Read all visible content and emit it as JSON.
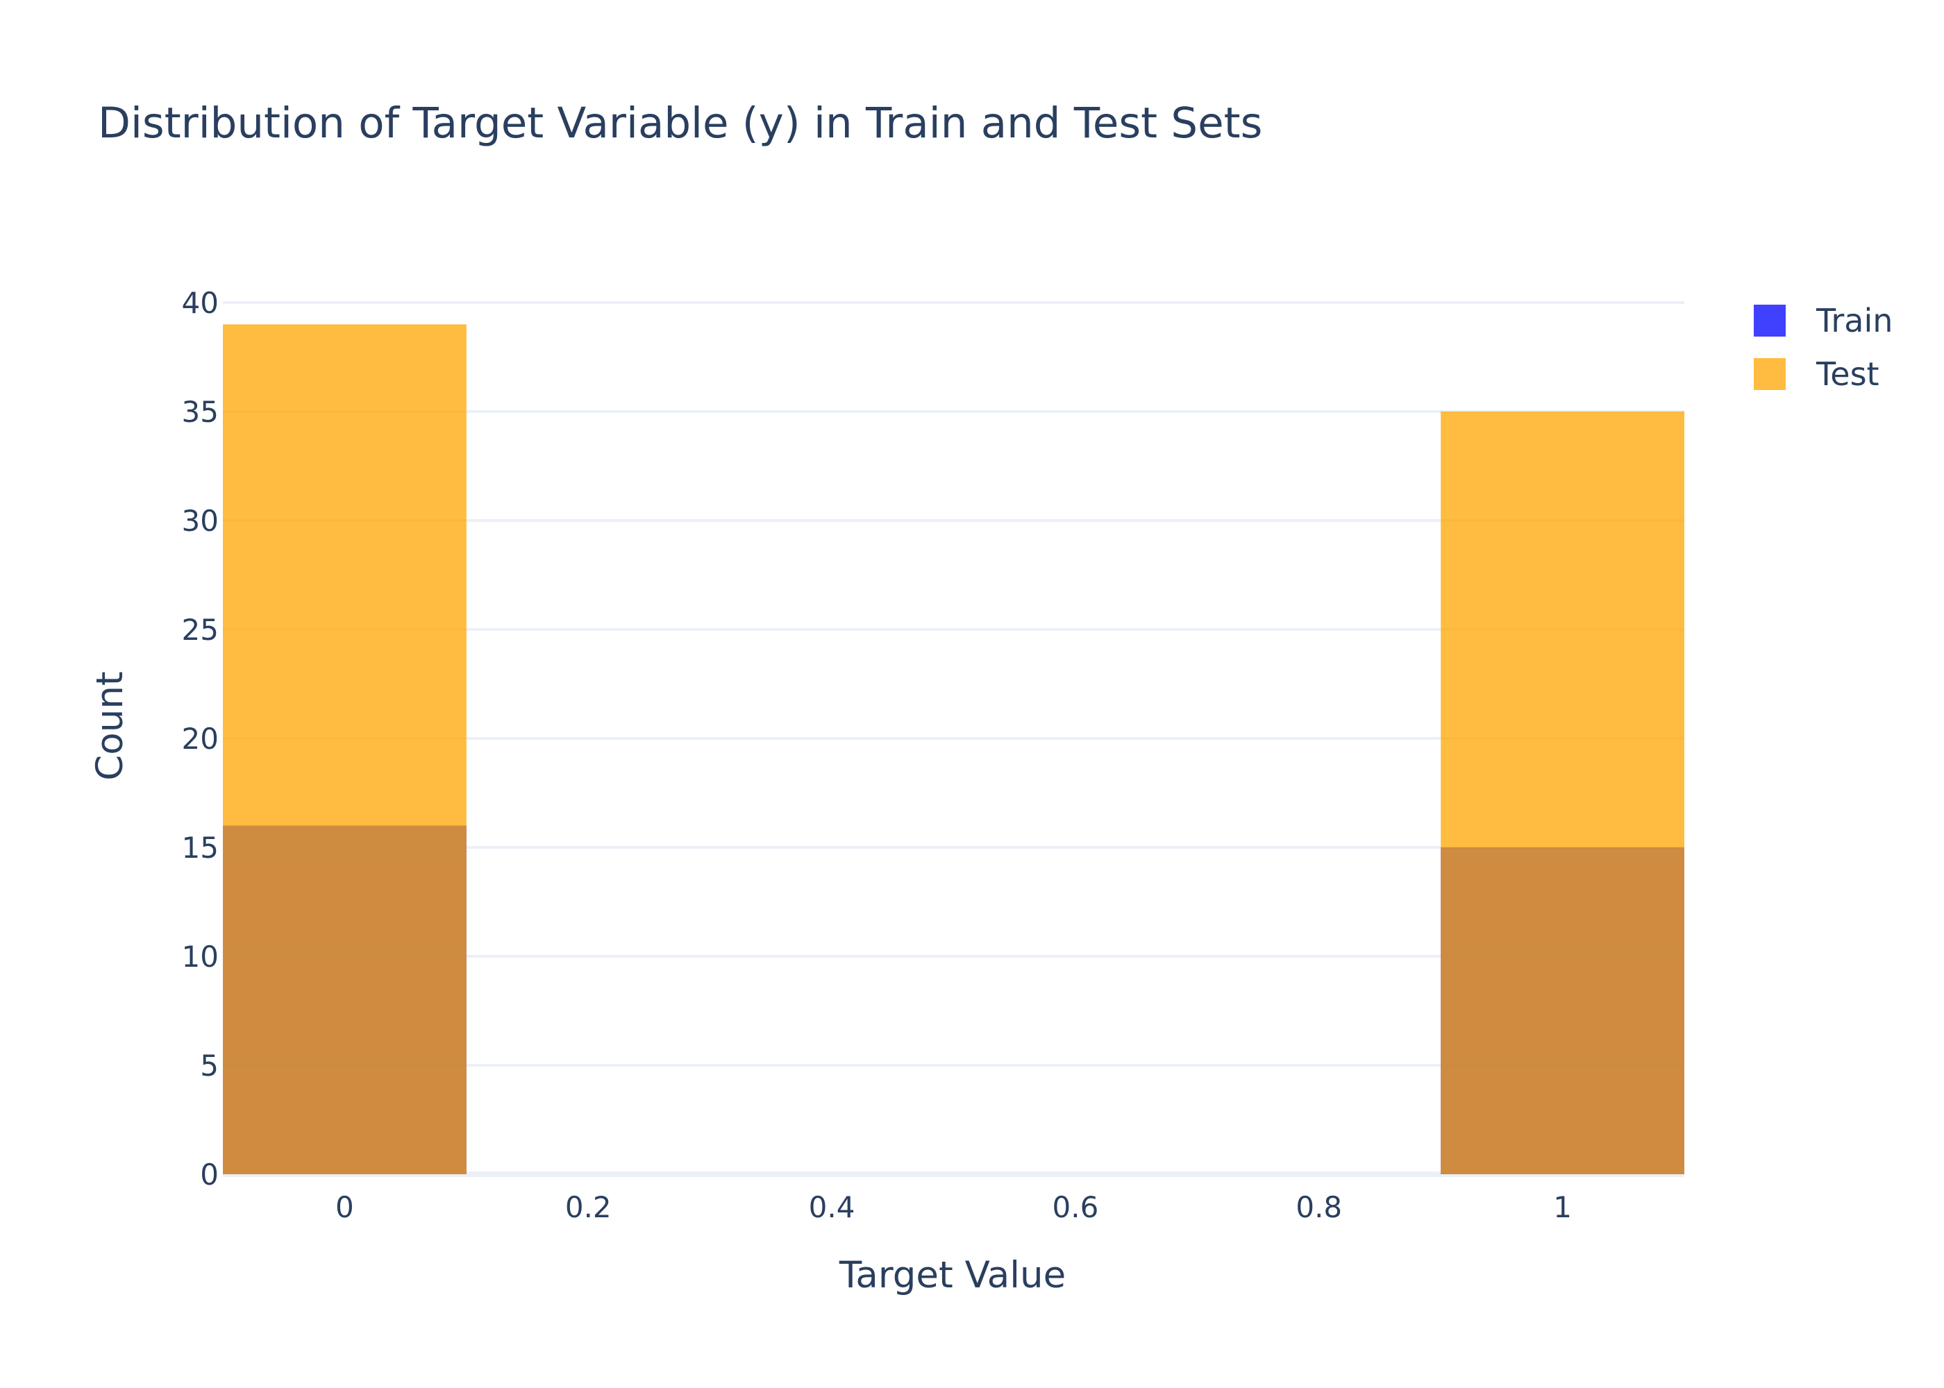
{
  "chart_data": {
    "type": "bar",
    "barmode": "overlay",
    "title": "Distribution of Target Variable (y) in Train and Test Sets",
    "xlabel": "Target Value",
    "ylabel": "Count",
    "xlim": [
      -0.1,
      1.1
    ],
    "ylim": [
      0,
      40
    ],
    "x_ticks": [
      0,
      0.2,
      0.4,
      0.6,
      0.8,
      1
    ],
    "x_tick_labels": [
      "0",
      "0.2",
      "0.4",
      "0.6",
      "0.8",
      "1"
    ],
    "y_ticks": [
      0,
      5,
      10,
      15,
      20,
      25,
      30,
      35,
      40
    ],
    "bin_width": 0.2,
    "grid": true,
    "legend_position": "top-right",
    "series": [
      {
        "name": "Train",
        "color": "#0000ff",
        "opacity": 0.75,
        "points": [
          {
            "x": 0,
            "value": 16
          },
          {
            "x": 1,
            "value": 15
          }
        ]
      },
      {
        "name": "Test",
        "color": "#ffa500",
        "opacity": 0.75,
        "points": [
          {
            "x": 0,
            "value": 39
          },
          {
            "x": 1,
            "value": 35
          }
        ]
      }
    ]
  }
}
